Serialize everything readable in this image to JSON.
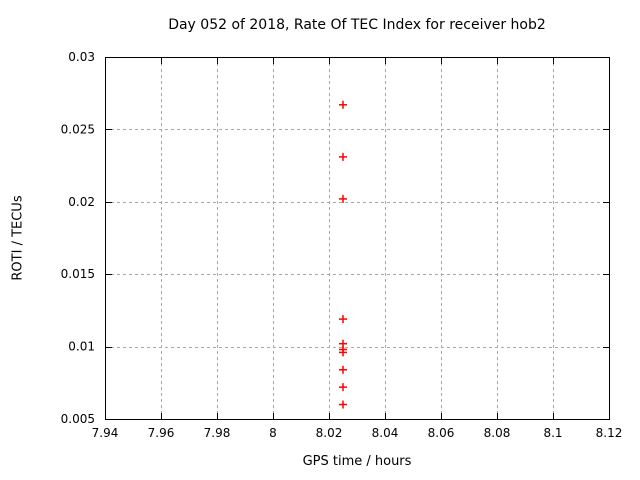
{
  "chart_data": {
    "type": "scatter",
    "title": "Day 052 of 2018, Rate Of TEC Index for receiver hob2",
    "xlabel": "GPS time / hours",
    "ylabel": "ROTI / TECUs",
    "xlim": [
      7.94,
      8.12
    ],
    "ylim": [
      0.005,
      0.03
    ],
    "x_ticks": [
      7.94,
      7.96,
      7.98,
      8.0,
      8.02,
      8.04,
      8.06,
      8.08,
      8.1,
      8.12
    ],
    "x_tick_labels": [
      "7.94",
      "7.96",
      "7.98",
      "8",
      "8.02",
      "8.04",
      "8.06",
      "8.08",
      "8.1",
      "8.12"
    ],
    "y_ticks": [
      0.005,
      0.01,
      0.015,
      0.02,
      0.025,
      0.03
    ],
    "y_tick_labels": [
      "0.005",
      "0.01",
      "0.015",
      "0.02",
      "0.025",
      "0.03"
    ],
    "grid": true,
    "legend": "none",
    "marker": "plus",
    "series": [
      {
        "name": "ROTI",
        "points": [
          {
            "x": 8.025,
            "y": 0.0267
          },
          {
            "x": 8.025,
            "y": 0.0231
          },
          {
            "x": 8.025,
            "y": 0.0202
          },
          {
            "x": 8.025,
            "y": 0.0119
          },
          {
            "x": 8.025,
            "y": 0.0102
          },
          {
            "x": 8.025,
            "y": 0.0098
          },
          {
            "x": 8.025,
            "y": 0.0096
          },
          {
            "x": 8.025,
            "y": 0.0084
          },
          {
            "x": 8.025,
            "y": 0.0072
          },
          {
            "x": 8.025,
            "y": 0.006
          }
        ]
      }
    ],
    "colors": {
      "marker": "#ff0000",
      "grid": "#a8a8a8",
      "border": "#000000",
      "text": "#000000",
      "background": "#ffffff"
    }
  }
}
